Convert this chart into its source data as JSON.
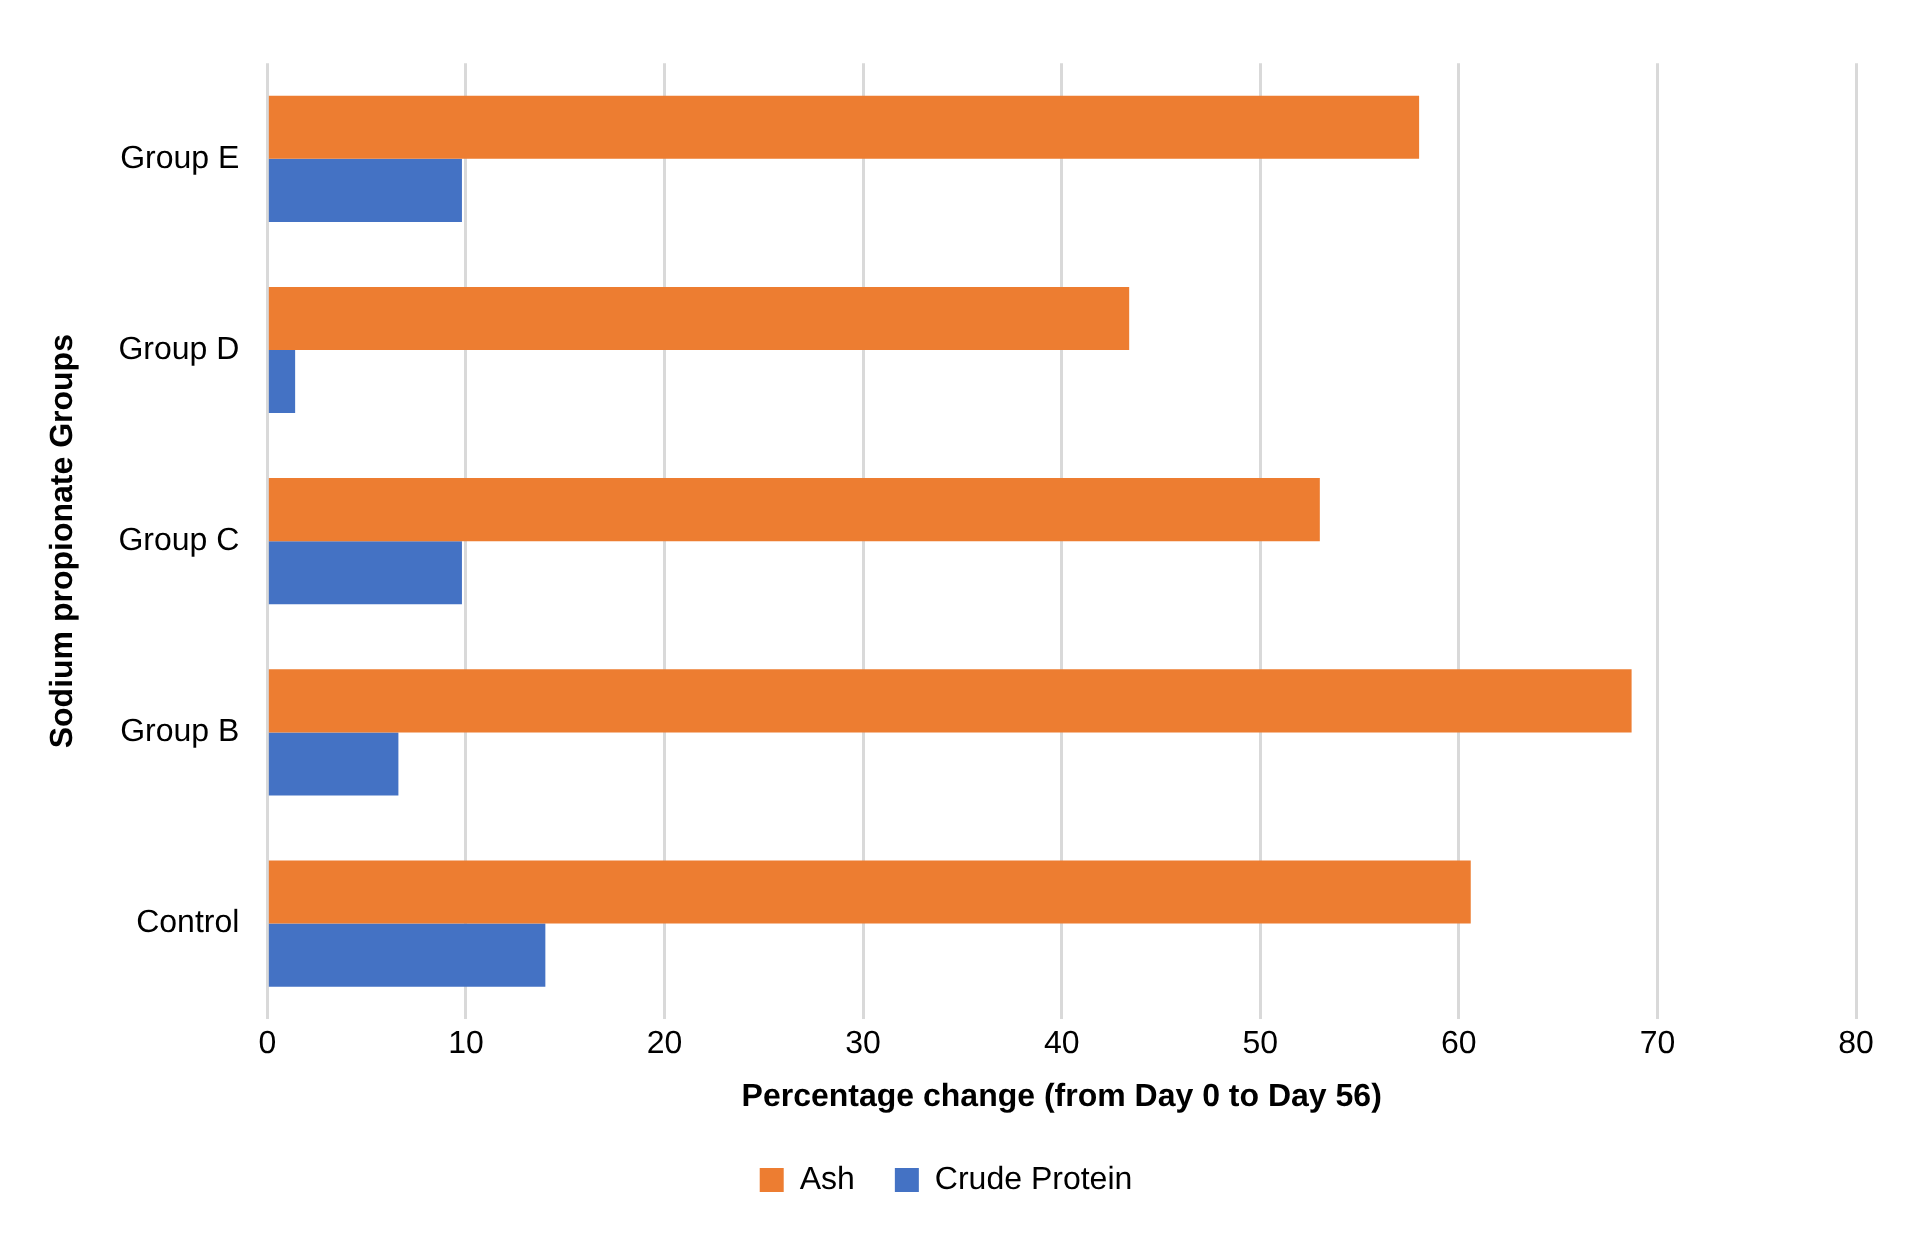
{
  "chart_data": {
    "type": "bar",
    "orientation": "horizontal",
    "xlabel": "Percentage change (from Day 0 to Day 56)",
    "ylabel": "Sodium propionate Groups",
    "categories": [
      "Group E",
      "Group D",
      "Group C",
      "Group B",
      "Control"
    ],
    "series": [
      {
        "name": "Ash",
        "color": "#ed7d31",
        "values": [
          58.0,
          43.4,
          53.0,
          68.7,
          60.6
        ]
      },
      {
        "name": "Crude Protein",
        "color": "#4472c4",
        "values": [
          9.8,
          1.4,
          9.8,
          6.6,
          14.0
        ]
      }
    ],
    "xlim": [
      0,
      80
    ],
    "xticks": [
      0,
      10,
      20,
      30,
      40,
      50,
      60,
      70,
      80
    ],
    "grid": "x",
    "legend": "bottom"
  }
}
